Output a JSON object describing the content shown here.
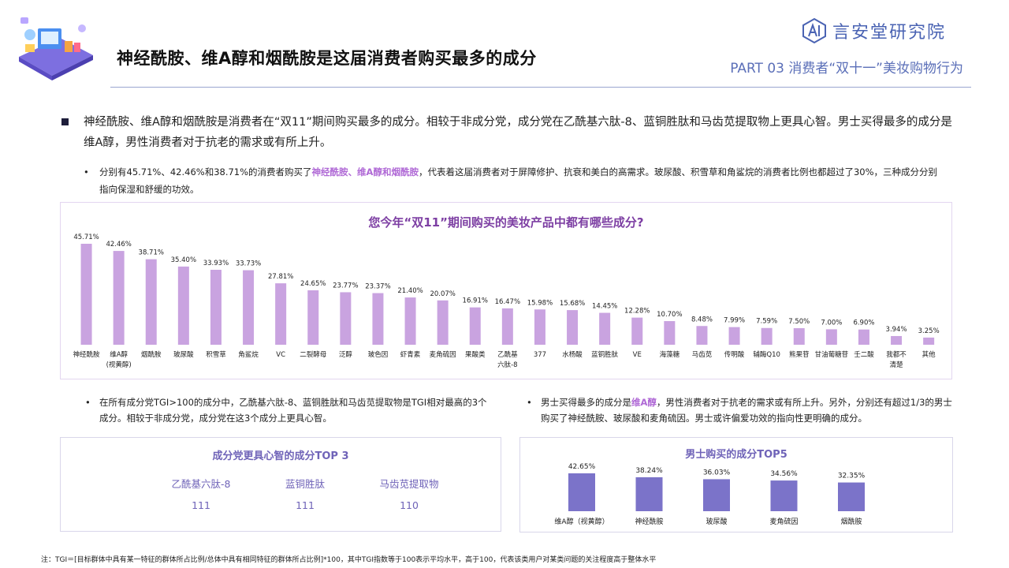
{
  "header": {
    "title": "神经酰胺、维A醇和烟酰胺是这届消费者购买最多的成分",
    "logo_text": "言安堂研究院",
    "part_label": "PART 03 消费者“双十一”美妆购物行为"
  },
  "summary": {
    "main": "神经酰胺、维A醇和烟酰胺是消费者在“双11”期间购买最多的成分。相较于非成分党，成分党在乙酰基六肽-8、蓝铜胜肽和马齿苋提取物上更具心智。男士买得最多的成分是维A醇，男性消费者对于抗老的需求或有所上升。",
    "sub_before": "分别有45.71%、42.46%和38.71%的消费者购买了",
    "sub_highlight": "神经酰胺、维A醇和烟酰胺",
    "sub_after": "，代表着这届消费者对于屏障修护、抗衰和美白的高需求。玻尿酸、积雪草和角鲨烷的消费者比例也都超过了30%，三种成分分别指向保湿和舒缓的功效。"
  },
  "left_note": "在所有成分党TGI>100的成分中，乙酰基六肽-8、蓝铜胜肽和马齿苋提取物是TGI相对最高的3个成分。相较于非成分党，成分党在这3个成分上更具心智。",
  "right_note": {
    "before": "男士买得最多的成分是",
    "highlight": "维A醇",
    "after": "，男性消费者对于抗老的需求或有所上升。另外，分别还有超过1/3的男士购买了神经酰胺、玻尿酸和麦角硫因。男士或许偏爱功效的指向性更明确的成分。"
  },
  "tgi_panel": {
    "title": "成分党更具心智的成分TOP 3",
    "items": [
      {
        "name": "乙酰基六肽-8",
        "value": "111"
      },
      {
        "name": "蓝铜胜肽",
        "value": "111"
      },
      {
        "name": "马齿苋提取物",
        "value": "110"
      }
    ]
  },
  "footnote": "注：TGI＝[目标群体中具有某一特征的群体所占比例/总体中具有相同特征的群体所占比例]*100，其中TGI指数等于100表示平均水平，高于100，代表该类用户对某类问题的关注程度高于整体水平",
  "chart_data": [
    {
      "type": "bar",
      "title": "您今年“双11”期间购买的美妆产品中都有哪些成分?",
      "categories": [
        "神经酰胺",
        "维A醇\n(视黄醇)",
        "烟酰胺",
        "玻尿酸",
        "积雪草",
        "角鲨烷",
        "VC",
        "二裂酵母",
        "泛醇",
        "玻色因",
        "虾青素",
        "麦角硫因",
        "果酸类",
        "乙酰基\n六肽-8",
        "377",
        "水杨酸",
        "蓝铜胜肽",
        "VE",
        "海藻糖",
        "马齿苋",
        "传明酸",
        "辅酶Q10",
        "熊果苷",
        "甘油葡糖苷",
        "壬二酸",
        "我都不\n清楚",
        "其他"
      ],
      "values": [
        45.71,
        42.46,
        38.71,
        35.4,
        33.93,
        33.73,
        27.81,
        24.65,
        23.77,
        23.37,
        21.4,
        20.07,
        16.91,
        16.47,
        15.98,
        15.68,
        14.45,
        12.28,
        10.7,
        8.48,
        7.99,
        7.59,
        7.5,
        7.0,
        6.9,
        3.94,
        3.25
      ],
      "labels": [
        "45.71%",
        "42.46%",
        "38.71%",
        "35.40%",
        "33.93%",
        "33.73%",
        "27.81%",
        "24.65%",
        "23.77%",
        "23.37%",
        "21.40%",
        "20.07%",
        "16.91%",
        "16.47%",
        "15.98%",
        "15.68%",
        "14.45%",
        "12.28%",
        "10.70%",
        "8.48%",
        "7.99%",
        "7.59%",
        "7.50%",
        "7.00%",
        "6.90%",
        "3.94%",
        "3.25%"
      ],
      "colors": {
        "bar": "#c9a3e0",
        "label": "#222222"
      }
    },
    {
      "type": "bar",
      "title": "男士购买的成分TOP5",
      "categories": [
        "维A醇（视黄醇）",
        "神经酰胺",
        "玻尿酸",
        "麦角硫因",
        "烟酰胺"
      ],
      "values": [
        42.65,
        38.24,
        36.03,
        34.56,
        32.35
      ],
      "labels": [
        "42.65%",
        "38.24%",
        "36.03%",
        "34.56%",
        "32.35%"
      ],
      "colors": {
        "bar": "#7b73c9",
        "label": "#222222"
      }
    }
  ]
}
